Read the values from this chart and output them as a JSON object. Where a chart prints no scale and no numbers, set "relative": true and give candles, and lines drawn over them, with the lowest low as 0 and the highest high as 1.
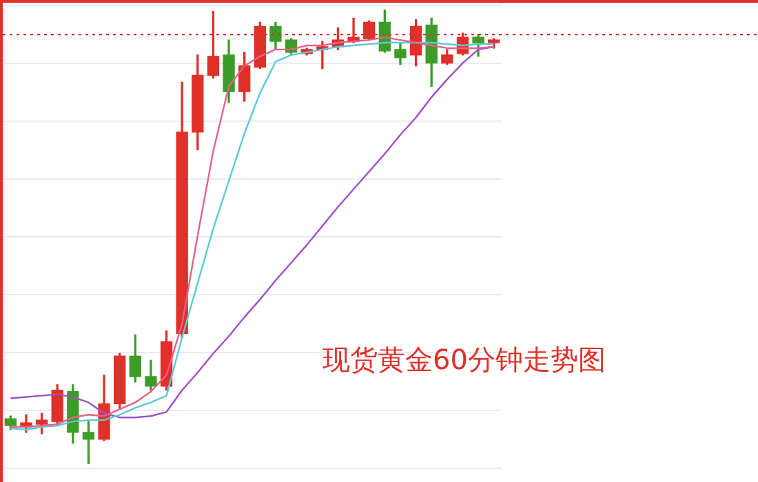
{
  "chart_data": {
    "type": "candlestick",
    "relative": true,
    "grid": "y",
    "categories": [
      null,
      null,
      null,
      null,
      null,
      null,
      null,
      null,
      null,
      null,
      null,
      null,
      null,
      null,
      null,
      null,
      null,
      null,
      null,
      null,
      null,
      null,
      null,
      null,
      null,
      null,
      null,
      null,
      null,
      null,
      null,
      null
    ],
    "ohlc": [
      [
        0.099,
        0.105,
        0.075,
        0.084
      ],
      [
        0.081,
        0.108,
        0.069,
        0.09
      ],
      [
        0.087,
        0.111,
        0.066,
        0.096
      ],
      [
        0.093,
        0.174,
        0.084,
        0.162
      ],
      [
        0.159,
        0.174,
        0.045,
        0.069
      ],
      [
        0.069,
        0.093,
        0,
        0.054
      ],
      [
        0.054,
        0.195,
        0.051,
        0.132
      ],
      [
        0.132,
        0.243,
        0.12,
        0.237
      ],
      [
        0.237,
        0.284,
        0.18,
        0.192
      ],
      [
        0.192,
        0.228,
        0.162,
        0.171
      ],
      [
        0.171,
        0.293,
        0.162,
        0.269
      ],
      [
        0.287,
        0.841,
        0.278,
        0.731
      ],
      [
        0.731,
        0.901,
        0.692,
        0.856
      ],
      [
        0.856,
        0.997,
        0.85,
        0.898
      ],
      [
        0.901,
        0.934,
        0.796,
        0.82
      ],
      [
        0.82,
        0.907,
        0.799,
        0.877
      ],
      [
        0.874,
        0.973,
        0.871,
        0.964
      ],
      [
        0.964,
        0.973,
        0.913,
        0.931
      ],
      [
        0.934,
        0.937,
        0.904,
        0.907
      ],
      [
        0.904,
        0.916,
        0.901,
        0.913
      ],
      [
        0.913,
        0.931,
        0.871,
        0.919
      ],
      [
        0.919,
        0.961,
        0.913,
        0.934
      ],
      [
        0.931,
        0.982,
        0.928,
        0.94
      ],
      [
        0.937,
        0.976,
        0.934,
        0.973
      ],
      [
        0.973,
        1,
        0.907,
        0.91
      ],
      [
        0.913,
        0.928,
        0.88,
        0.895
      ],
      [
        0.901,
        0.979,
        0.877,
        0.964
      ],
      [
        0.967,
        0.982,
        0.832,
        0.883
      ],
      [
        0.883,
        0.913,
        0.88,
        0.901
      ],
      [
        0.904,
        0.949,
        0.901,
        0.94
      ],
      [
        0.94,
        0.946,
        0.898,
        0.928
      ],
      [
        0.928,
        0.937,
        0.916,
        0.934
      ]
    ],
    "series": [
      {
        "type": "line",
        "color": "#e8608a",
        "values": [
          0.081,
          0.081,
          0.084,
          0.087,
          0.102,
          0.108,
          0.105,
          0.12,
          0.135,
          0.159,
          0.195,
          0.308,
          0.503,
          0.689,
          0.832,
          0.877,
          0.898,
          0.913,
          0.913,
          0.922,
          0.922,
          0.928,
          0.931,
          0.934,
          0.94,
          0.934,
          0.928,
          0.922,
          0.916,
          0.916,
          0.916,
          0.919
        ]
      },
      {
        "type": "line",
        "color": "#5bc8dc",
        "values": [
          0.078,
          0.075,
          0.081,
          0.084,
          0.093,
          0.096,
          0.096,
          0.108,
          0.123,
          0.135,
          0.15,
          0.278,
          0.398,
          0.518,
          0.623,
          0.728,
          0.817,
          0.886,
          0.901,
          0.907,
          0.913,
          0.919,
          0.922,
          0.925,
          0.928,
          0.928,
          0.928,
          0.928,
          0.925,
          0.922,
          0.925,
          0.925
        ]
      },
      {
        "type": "line",
        "color": "#a050c8",
        "values": [
          0.144,
          0.147,
          0.15,
          0.153,
          0.147,
          0.135,
          0.111,
          0.102,
          0.102,
          0.105,
          0.114,
          0.162,
          0.201,
          0.243,
          0.281,
          0.323,
          0.362,
          0.404,
          0.443,
          0.482,
          0.524,
          0.566,
          0.605,
          0.644,
          0.683,
          0.725,
          0.763,
          0.808,
          0.847,
          0.883,
          0.913,
          0.919
        ]
      }
    ],
    "ref_lines": [
      {
        "axis": "y",
        "value": 0.946,
        "color": "#e0302a",
        "line_style": "dotted"
      }
    ],
    "annotations": [
      "现货黄金60分钟走势图"
    ]
  }
}
